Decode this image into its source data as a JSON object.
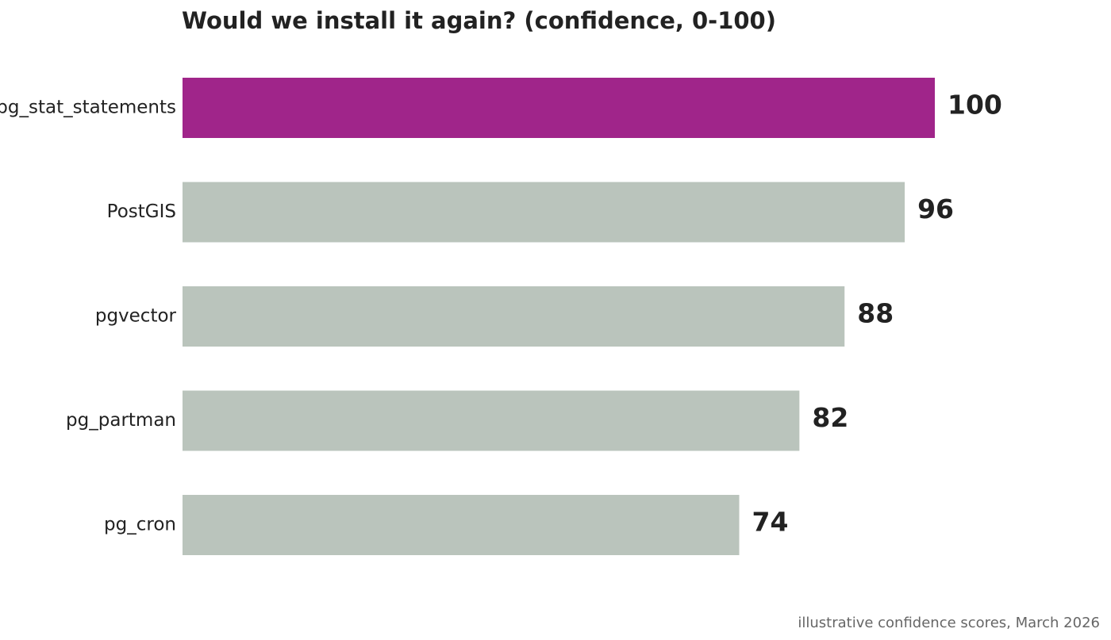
{
  "chart_data": {
    "type": "bar",
    "orientation": "horizontal",
    "title": "Would we install it again? (confidence, 0-100)",
    "categories": [
      "pg_stat_statements",
      "PostGIS",
      "pgvector",
      "pg_partman",
      "pg_cron"
    ],
    "values": [
      100,
      96,
      88,
      82,
      74
    ],
    "value_labels": [
      "100",
      "96",
      "88",
      "82",
      "74"
    ],
    "xlim": [
      0,
      100
    ],
    "grid": false,
    "legend": "none",
    "highlight_index": 0,
    "colors": {
      "highlight": "#A0258A",
      "default": "#BAC4BC"
    },
    "caption": "illustrative confidence scores, March 2026"
  }
}
